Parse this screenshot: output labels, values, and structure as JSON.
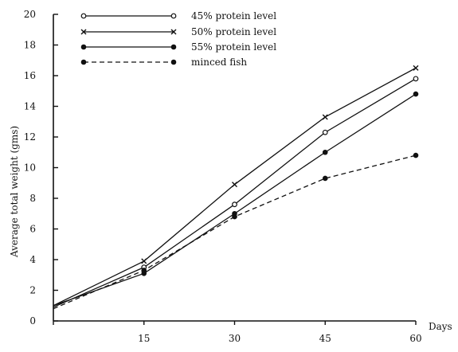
{
  "chart_data": {
    "type": "line",
    "title": "",
    "xlabel": "Days",
    "ylabel": "Average total weight (gms)",
    "x": [
      0,
      15,
      30,
      45,
      60
    ],
    "x_ticks": [
      15,
      30,
      45,
      60
    ],
    "y_ticks": [
      0,
      2,
      4,
      6,
      8,
      10,
      12,
      14,
      16,
      18,
      20
    ],
    "xlim": [
      0,
      60
    ],
    "ylim": [
      0,
      20
    ],
    "grid": false,
    "legend_position": "top-left",
    "series": [
      {
        "name": "45% protein level",
        "values": [
          0.9,
          3.5,
          7.6,
          12.3,
          15.8
        ],
        "line_style": "solid",
        "marker": "open-circle",
        "color": "#111111"
      },
      {
        "name": "50% protein level",
        "values": [
          1.0,
          3.9,
          8.9,
          13.3,
          16.5
        ],
        "line_style": "solid",
        "marker": "cross",
        "color": "#111111"
      },
      {
        "name": "55% protein level",
        "values": [
          1.0,
          3.1,
          7.0,
          11.0,
          14.8
        ],
        "line_style": "solid",
        "marker": "filled-circle",
        "color": "#111111"
      },
      {
        "name": "minced fish",
        "values": [
          0.8,
          3.3,
          6.8,
          9.3,
          10.8
        ],
        "line_style": "dashed",
        "marker": "filled-circle",
        "color": "#111111"
      }
    ]
  }
}
